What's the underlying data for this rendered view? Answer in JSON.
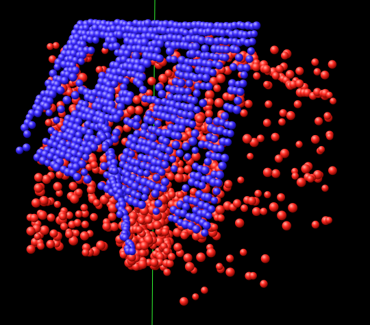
{
  "scene": {
    "background": "#000000",
    "axis_color": "#33ff33",
    "particle_sets": [
      {
        "name": "blue-particles",
        "color": "#3d2cff",
        "highlight": "#b9b3ff",
        "shade": "#100880"
      },
      {
        "name": "red-particles",
        "color": "#ff2a22",
        "highlight": "#ffb0a6",
        "shade": "#7a0600"
      }
    ]
  }
}
